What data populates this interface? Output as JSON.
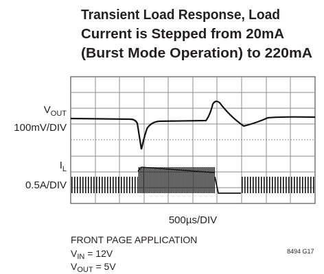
{
  "title": [
    "Transient Load Response, Load",
    "Current is Stepped from 20mA",
    "(Burst Mode Operation) to 220mA"
  ],
  "channels": [
    {
      "main": "V",
      "sub": "OUT",
      "scale": "100mV/DIV"
    },
    {
      "main": "I",
      "sub": "L",
      "scale": "0.5A/DIV"
    }
  ],
  "timebase": "500µs/DIV",
  "notes": {
    "heading": "FRONT PAGE APPLICATION",
    "lines": [
      {
        "main": "V",
        "sub": "IN",
        "rest": " = 12V"
      },
      {
        "main": "V",
        "sub": "OUT",
        "rest": " = 5V"
      }
    ]
  },
  "figure_id": "8494 G17"
}
